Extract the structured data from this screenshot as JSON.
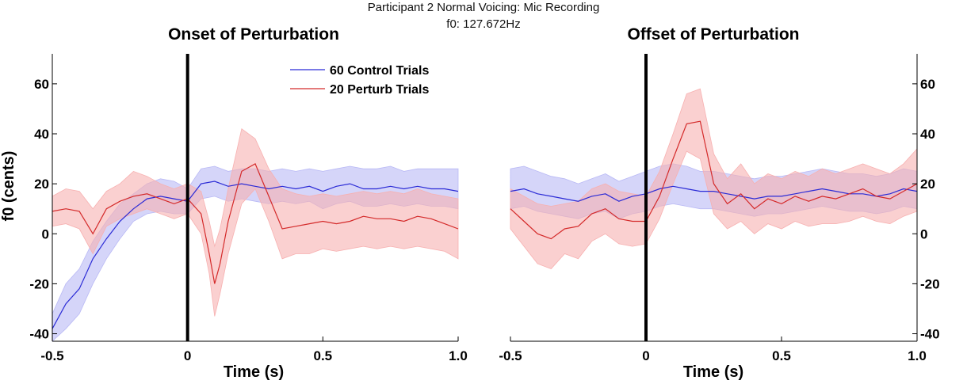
{
  "figure": {
    "title_line1": "Participant 2 Normal Voicing: Mic Recording",
    "title_line2": "f0: 127.672Hz"
  },
  "colors": {
    "control_line": "#2b2bd6",
    "control_band": "#b9b9f5",
    "perturb_line": "#d42a2a",
    "perturb_band": "#f7b0b0",
    "marker": "#000000"
  },
  "chart_data": [
    {
      "type": "line",
      "title": "Onset of Perturbation",
      "xlabel": "Time (s)",
      "ylabel": "f0 (cents)",
      "xlim": [
        -0.5,
        1.0
      ],
      "ylim": [
        -43,
        72
      ],
      "xticks": [
        -0.5,
        0,
        0.5,
        1.0
      ],
      "xtick_labels": [
        "-0.5",
        "0",
        "0.5",
        "1.0"
      ],
      "yticks": [
        -40,
        -20,
        0,
        20,
        40,
        60
      ],
      "ytick_labels": [
        "-40",
        "-20",
        "0",
        "20",
        "40",
        "60"
      ],
      "y_axis_side": "left",
      "vertical_marker_x": 0,
      "legend": {
        "placement": "top-right",
        "entries": [
          "60 Control Trials",
          "20 Perturb Trials"
        ]
      },
      "series": [
        {
          "name": "60 Control Trials",
          "color_key": "control",
          "x": [
            -0.5,
            -0.45,
            -0.4,
            -0.35,
            -0.3,
            -0.25,
            -0.2,
            -0.15,
            -0.1,
            -0.05,
            0,
            0.05,
            0.1,
            0.15,
            0.2,
            0.25,
            0.3,
            0.35,
            0.4,
            0.45,
            0.5,
            0.55,
            0.6,
            0.65,
            0.7,
            0.75,
            0.8,
            0.85,
            0.9,
            0.95,
            1.0
          ],
          "values": [
            -38,
            -28,
            -22,
            -10,
            -2,
            5,
            10,
            14,
            15,
            14,
            13,
            20,
            21,
            19,
            20,
            19,
            18,
            19,
            18,
            19,
            17,
            19,
            20,
            18,
            18,
            19,
            18,
            19,
            18,
            18,
            17
          ],
          "lower": [
            -43,
            -38,
            -32,
            -20,
            -10,
            -2,
            5,
            8,
            9,
            8,
            8,
            14,
            15,
            13,
            14,
            13,
            12,
            13,
            12,
            13,
            10,
            12,
            13,
            11,
            11,
            12,
            11,
            12,
            11,
            11,
            10
          ],
          "upper": [
            -32,
            -20,
            -14,
            -3,
            5,
            12,
            16,
            20,
            22,
            21,
            18,
            26,
            27,
            25,
            26,
            26,
            25,
            26,
            25,
            26,
            25,
            26,
            27,
            26,
            26,
            27,
            25,
            26,
            26,
            26,
            26
          ]
        },
        {
          "name": "20 Perturb Trials",
          "color_key": "perturb",
          "x": [
            -0.5,
            -0.45,
            -0.4,
            -0.35,
            -0.3,
            -0.25,
            -0.2,
            -0.15,
            -0.1,
            -0.05,
            0,
            0.05,
            0.08,
            0.1,
            0.12,
            0.15,
            0.2,
            0.25,
            0.3,
            0.35,
            0.4,
            0.45,
            0.5,
            0.55,
            0.6,
            0.65,
            0.7,
            0.75,
            0.8,
            0.85,
            0.9,
            0.95,
            1.0
          ],
          "values": [
            9,
            10,
            9,
            0,
            10,
            13,
            15,
            16,
            14,
            12,
            14,
            8,
            -8,
            -20,
            -12,
            5,
            25,
            28,
            15,
            2,
            3,
            4,
            5,
            4,
            5,
            7,
            6,
            6,
            5,
            7,
            6,
            4,
            2
          ],
          "lower": [
            3,
            4,
            2,
            -8,
            3,
            6,
            8,
            10,
            8,
            6,
            8,
            0,
            -16,
            -33,
            -24,
            -8,
            12,
            18,
            5,
            -10,
            -8,
            -8,
            -6,
            -7,
            -6,
            -5,
            -6,
            -5,
            -6,
            -5,
            -6,
            -7,
            -10
          ],
          "upper": [
            15,
            18,
            17,
            10,
            17,
            20,
            25,
            23,
            20,
            18,
            20,
            17,
            5,
            -5,
            2,
            18,
            42,
            38,
            26,
            18,
            16,
            15,
            16,
            15,
            16,
            17,
            16,
            17,
            16,
            18,
            16,
            15,
            14
          ]
        }
      ]
    },
    {
      "type": "line",
      "title": "Offset of Perturbation",
      "xlabel": "Time (s)",
      "ylabel": "",
      "xlim": [
        -0.5,
        1.0
      ],
      "ylim": [
        -43,
        72
      ],
      "xticks": [
        -0.5,
        0,
        0.5,
        1.0
      ],
      "xtick_labels": [
        "-0.5",
        "0",
        "0.5",
        "1.0"
      ],
      "yticks": [
        -40,
        -20,
        0,
        20,
        40,
        60
      ],
      "ytick_labels": [
        "-40",
        "-20",
        "0",
        "20",
        "40",
        "60"
      ],
      "y_axis_side": "right",
      "vertical_marker_x": 0,
      "series": [
        {
          "name": "60 Control Trials",
          "color_key": "control",
          "x": [
            -0.5,
            -0.45,
            -0.4,
            -0.35,
            -0.3,
            -0.25,
            -0.2,
            -0.15,
            -0.1,
            -0.05,
            0,
            0.05,
            0.1,
            0.15,
            0.2,
            0.25,
            0.3,
            0.35,
            0.4,
            0.45,
            0.5,
            0.55,
            0.6,
            0.65,
            0.7,
            0.75,
            0.8,
            0.85,
            0.9,
            0.95,
            1.0
          ],
          "values": [
            17,
            18,
            16,
            15,
            14,
            13,
            15,
            16,
            13,
            15,
            16,
            18,
            19,
            18,
            17,
            17,
            16,
            15,
            14,
            15,
            15,
            16,
            17,
            18,
            17,
            16,
            16,
            15,
            16,
            18,
            17
          ],
          "lower": [
            10,
            11,
            9,
            8,
            7,
            6,
            8,
            9,
            6,
            8,
            9,
            11,
            12,
            11,
            10,
            10,
            9,
            8,
            7,
            8,
            8,
            9,
            10,
            11,
            10,
            9,
            9,
            8,
            9,
            11,
            10
          ],
          "upper": [
            26,
            27,
            25,
            23,
            22,
            20,
            22,
            24,
            21,
            23,
            25,
            27,
            28,
            27,
            25,
            25,
            24,
            23,
            22,
            23,
            23,
            24,
            25,
            26,
            25,
            24,
            24,
            23,
            24,
            26,
            25
          ]
        },
        {
          "name": "20 Perturb Trials",
          "color_key": "perturb",
          "x": [
            -0.5,
            -0.45,
            -0.4,
            -0.35,
            -0.3,
            -0.25,
            -0.2,
            -0.15,
            -0.1,
            -0.05,
            0,
            0.05,
            0.1,
            0.15,
            0.2,
            0.25,
            0.3,
            0.35,
            0.4,
            0.45,
            0.5,
            0.55,
            0.6,
            0.65,
            0.7,
            0.75,
            0.8,
            0.85,
            0.9,
            0.95,
            1.0
          ],
          "values": [
            10,
            5,
            0,
            -2,
            2,
            3,
            8,
            10,
            6,
            5,
            5,
            15,
            30,
            44,
            45,
            20,
            12,
            16,
            10,
            14,
            12,
            15,
            13,
            15,
            14,
            16,
            18,
            15,
            14,
            17,
            20
          ],
          "lower": [
            2,
            -5,
            -12,
            -14,
            -8,
            -10,
            -3,
            0,
            -4,
            -5,
            -4,
            6,
            20,
            33,
            30,
            8,
            2,
            5,
            0,
            4,
            2,
            5,
            3,
            4,
            4,
            5,
            7,
            5,
            4,
            7,
            9
          ],
          "upper": [
            18,
            15,
            12,
            11,
            12,
            13,
            18,
            20,
            17,
            16,
            15,
            25,
            40,
            56,
            58,
            32,
            22,
            28,
            20,
            24,
            22,
            25,
            23,
            26,
            24,
            26,
            28,
            26,
            24,
            28,
            34
          ]
        }
      ]
    }
  ]
}
